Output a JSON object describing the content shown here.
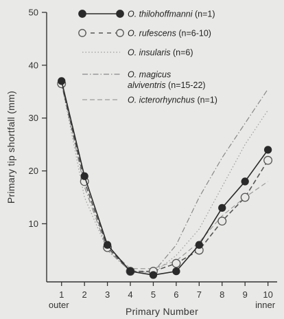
{
  "chart_data": {
    "type": "line",
    "xlabel": "Primary Number",
    "ylabel": "Primary tip shortfall (mm)",
    "x": [
      1,
      2,
      3,
      4,
      5,
      6,
      7,
      8,
      9,
      10
    ],
    "x_tick_labels": [
      "1",
      "2",
      "3",
      "4",
      "5",
      "6",
      "7",
      "8",
      "9",
      "10"
    ],
    "x_end_labels": {
      "first": "outer",
      "last": "inner"
    },
    "y_ticks": [
      10,
      20,
      30,
      40,
      50
    ],
    "xlim": [
      0.35,
      10.4
    ],
    "ylim": [
      -1,
      50
    ],
    "grid": false,
    "legend_position": "top-right",
    "series": [
      {
        "name_main": "O. thilohoffmanni",
        "name_extra": "(n=1)",
        "values": [
          37,
          19,
          6,
          1,
          0.3,
          1,
          6,
          13,
          18,
          24
        ],
        "style": "solid",
        "marker": "filled-circle",
        "color": "#2a2a2a"
      },
      {
        "name_main": "O. rufescens",
        "name_extra": "(n=6-10)",
        "values": [
          36.5,
          18,
          5.5,
          1,
          1,
          2.5,
          5,
          10.5,
          15,
          22
        ],
        "style": "dashed",
        "marker": "open-circle",
        "color": "#555555"
      },
      {
        "name_main": "O. insularis",
        "name_extra": "(n=6)",
        "values": [
          36.5,
          15,
          5,
          1,
          0.7,
          4,
          9,
          17,
          25,
          31.5
        ],
        "style": "dotted",
        "marker": "none",
        "color": "#9a9a9a"
      },
      {
        "name_main": "O. magicus",
        "name_line2": "alviventris",
        "name_extra": "(n=15-22)",
        "values": [
          36.5,
          17,
          5,
          1,
          0.8,
          6,
          15,
          22.5,
          29,
          35.5
        ],
        "style": "dashdot",
        "marker": "none",
        "color": "#888888"
      },
      {
        "name_main": "O. icterorhynchus",
        "name_extra": "(n=1)",
        "values": [
          36.5,
          18,
          5.5,
          1.5,
          1.5,
          3,
          6.5,
          11.5,
          15,
          18
        ],
        "style": "dashed",
        "marker": "none",
        "color": "#9a9a9a"
      }
    ]
  }
}
